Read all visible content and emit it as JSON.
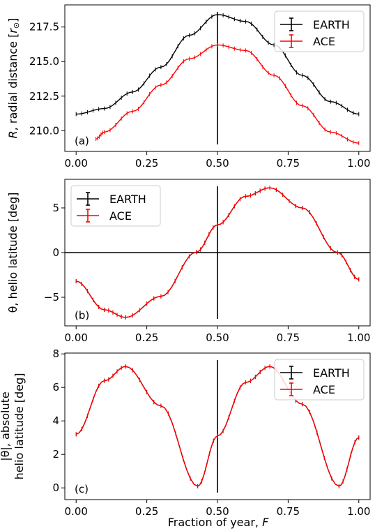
{
  "figure": {
    "xlabel": "Fraction of year, F",
    "xlabel_main": "Fraction of year, ",
    "xlabel_var": "F"
  },
  "colors": {
    "earth": "#000000",
    "ace": "#ff0000",
    "frame": "#000000"
  },
  "chart_data": [
    {
      "type": "line",
      "panel_label": "(a)",
      "ylabel": "R, radial distance [r⊙]",
      "ylabel_var": "R",
      "ylabel_text": ", radial distance [",
      "ylabel_unit": "r",
      "ylabel_unit_sub": "⊙",
      "ylabel_end": "]",
      "xlim": [
        -0.04,
        1.04
      ],
      "ylim": [
        208.5,
        219.1
      ],
      "xticks": [
        "0.00",
        "0.25",
        "0.50",
        "0.75",
        "1.00"
      ],
      "xtick_values": [
        0,
        0.25,
        0.5,
        0.75,
        1.0
      ],
      "yticks": [
        "210.0",
        "212.5",
        "215.0",
        "217.5"
      ],
      "ytick_values": [
        210.0,
        212.5,
        215.0,
        217.5
      ],
      "vline_x": 0.5,
      "legend": {
        "location": "upper right",
        "entries": [
          "EARTH",
          "ACE"
        ]
      },
      "series": [
        {
          "name": "EARTH",
          "x": [
            0.0,
            0.1,
            0.2,
            0.3,
            0.4,
            0.5,
            0.6,
            0.7,
            0.8,
            0.9,
            1.0
          ],
          "values": [
            211.2,
            211.6,
            212.8,
            214.6,
            216.9,
            218.4,
            217.9,
            216.2,
            214.0,
            212.1,
            211.2
          ]
        },
        {
          "name": "ACE",
          "x": [
            0.07,
            0.1,
            0.2,
            0.3,
            0.4,
            0.5,
            0.6,
            0.7,
            0.8,
            0.9,
            1.0
          ],
          "values": [
            209.4,
            209.9,
            211.4,
            213.3,
            215.2,
            216.2,
            215.8,
            214.0,
            211.8,
            209.9,
            209.1
          ]
        }
      ]
    },
    {
      "type": "line",
      "panel_label": "(b)",
      "ylabel": "θ, helio latitude [deg]",
      "xlim": [
        -0.04,
        1.04
      ],
      "ylim": [
        -8.2,
        8.2
      ],
      "xticks": [
        "0.00",
        "0.25",
        "0.50",
        "0.75",
        "1.00"
      ],
      "xtick_values": [
        0,
        0.25,
        0.5,
        0.75,
        1.0
      ],
      "yticks": [
        "−5",
        "0",
        "5"
      ],
      "ytick_values": [
        -5,
        0,
        5
      ],
      "vline_x": 0.5,
      "hline_y": 0,
      "legend": {
        "location": "upper left",
        "entries": [
          "EARTH",
          "ACE"
        ]
      },
      "series": [
        {
          "name": "EARTH",
          "x": [
            0.0,
            0.1,
            0.175,
            0.3,
            0.425,
            0.5,
            0.6,
            0.685,
            0.8,
            0.925,
            1.0
          ],
          "values": [
            -3.2,
            -6.4,
            -7.25,
            -4.9,
            0.05,
            3.1,
            6.3,
            7.25,
            5.0,
            0.0,
            -3.0
          ]
        },
        {
          "name": "ACE",
          "x": [
            0.0,
            0.1,
            0.175,
            0.3,
            0.425,
            0.5,
            0.6,
            0.685,
            0.8,
            0.925,
            1.0
          ],
          "values": [
            -3.2,
            -6.4,
            -7.25,
            -4.9,
            0.05,
            3.1,
            6.3,
            7.25,
            5.0,
            0.0,
            -3.0
          ]
        }
      ]
    },
    {
      "type": "line",
      "panel_label": "(c)",
      "ylabel": "|θ|, absolute helio latitude [deg]",
      "ylabel_line1": "|θ|, absolute",
      "ylabel_line2": "helio latitude [deg]",
      "xlim": [
        -0.04,
        1.04
      ],
      "ylim": [
        -0.7,
        8.05
      ],
      "xticks": [
        "0.00",
        "0.25",
        "0.50",
        "0.75",
        "1.00"
      ],
      "xtick_values": [
        0,
        0.25,
        0.5,
        0.75,
        1.0
      ],
      "yticks": [
        "0",
        "2",
        "4",
        "6",
        "8"
      ],
      "ytick_values": [
        0,
        2,
        4,
        6,
        8
      ],
      "vline_x": 0.5,
      "legend": {
        "location": "upper right",
        "entries": [
          "EARTH",
          "ACE"
        ]
      },
      "series": [
        {
          "name": "EARTH",
          "x": [
            0.0,
            0.1,
            0.175,
            0.3,
            0.43,
            0.5,
            0.6,
            0.685,
            0.8,
            0.93,
            1.0
          ],
          "values": [
            3.2,
            6.4,
            7.25,
            4.9,
            0.1,
            3.1,
            6.3,
            7.25,
            5.0,
            0.1,
            3.0
          ]
        },
        {
          "name": "ACE",
          "x": [
            0.0,
            0.1,
            0.175,
            0.3,
            0.43,
            0.5,
            0.6,
            0.685,
            0.8,
            0.93,
            1.0
          ],
          "values": [
            3.2,
            6.4,
            7.25,
            4.9,
            0.1,
            3.1,
            6.3,
            7.25,
            5.0,
            0.1,
            3.0
          ]
        }
      ]
    }
  ]
}
